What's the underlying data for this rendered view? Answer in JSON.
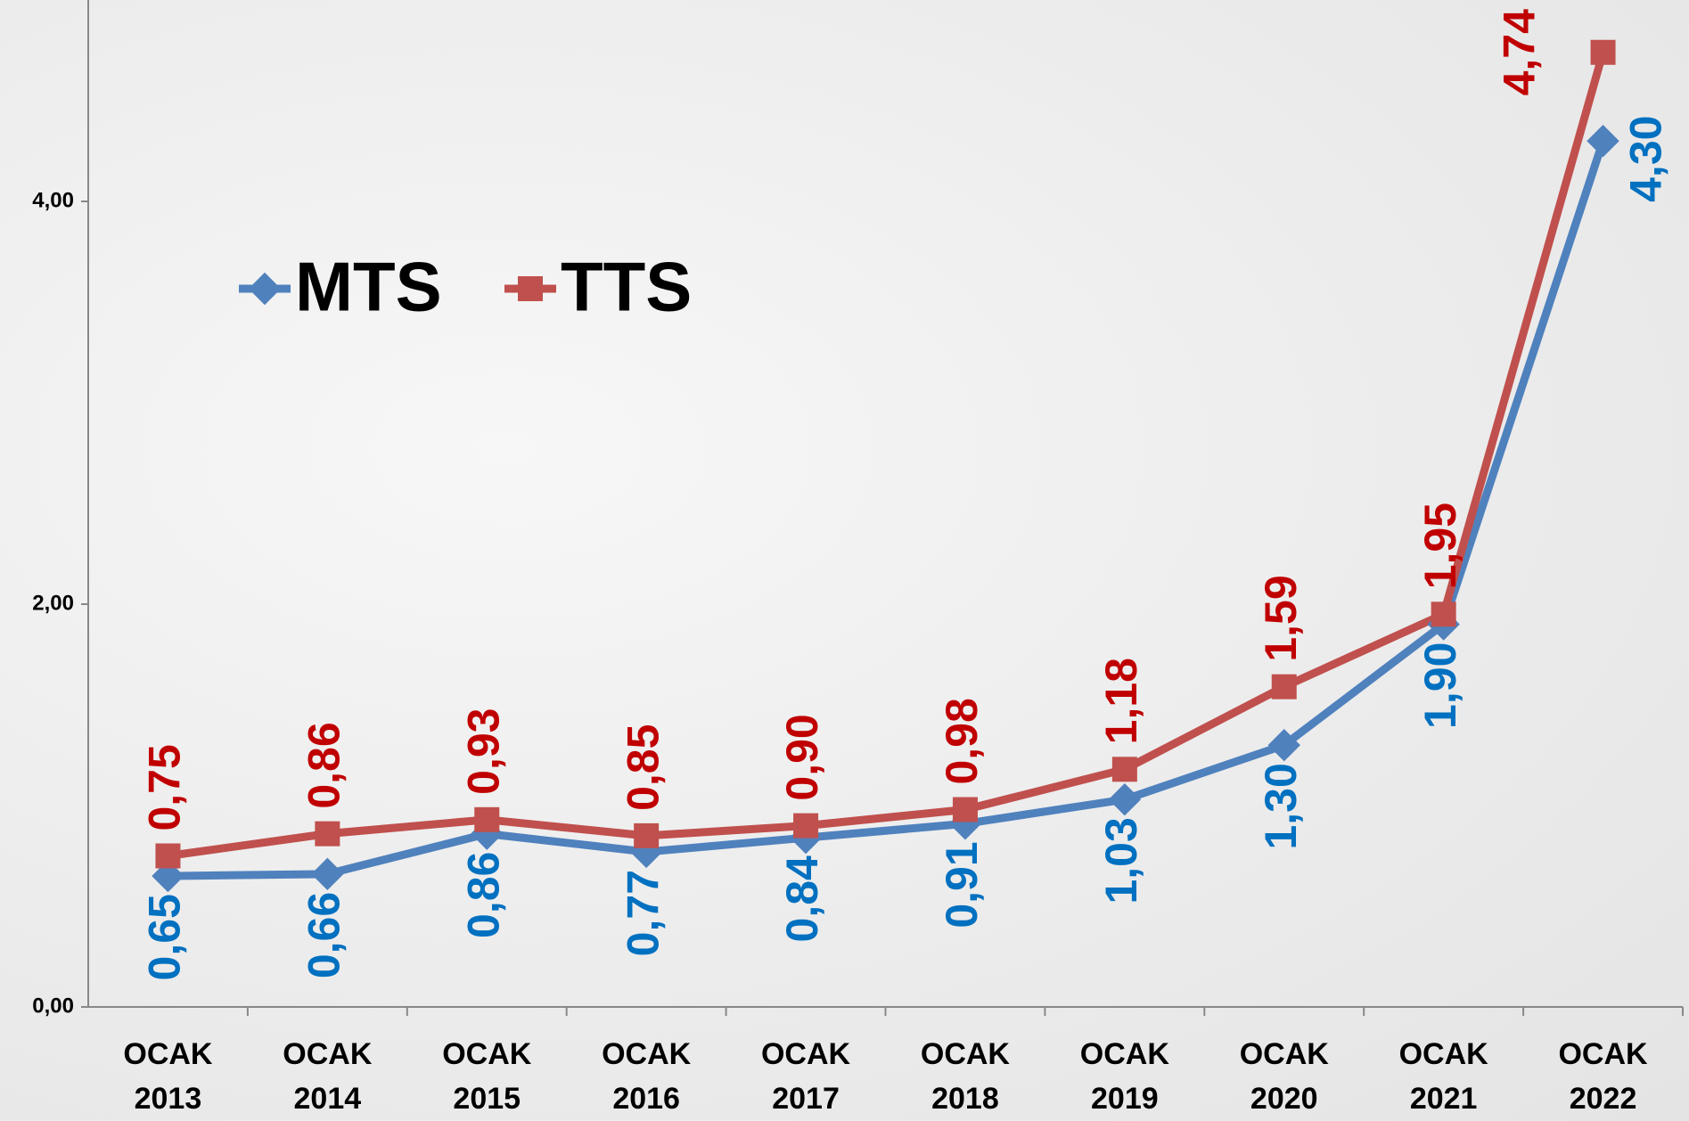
{
  "chart_data": {
    "type": "line",
    "categories": [
      "OCAK 2013",
      "OCAK 2014",
      "OCAK 2015",
      "OCAK 2016",
      "OCAK 2017",
      "OCAK 2018",
      "OCAK 2019",
      "OCAK 2020",
      "OCAK 2021",
      "OCAK 2022"
    ],
    "series": [
      {
        "name": "MTS",
        "color": "#4f81bd",
        "label_color": "#0070c0",
        "marker": "diamond",
        "values": [
          0.65,
          0.66,
          0.86,
          0.77,
          0.84,
          0.91,
          1.03,
          1.3,
          1.9,
          4.3
        ],
        "value_labels": [
          "0,65",
          "0,66",
          "0,86",
          "0,77",
          "0,84",
          "0,91",
          "1,03",
          "1,30",
          "1,90",
          "4,30"
        ]
      },
      {
        "name": "TTS",
        "color": "#c0504d",
        "label_color": "#c00000",
        "marker": "square",
        "values": [
          0.75,
          0.86,
          0.93,
          0.85,
          0.9,
          0.98,
          1.18,
          1.59,
          1.95,
          4.74
        ],
        "value_labels": [
          "0,75",
          "0,86",
          "0,93",
          "0,85",
          "0,90",
          "0,98",
          "1,18",
          "1,59",
          "1,95",
          "4,74"
        ]
      }
    ],
    "ylim": [
      0,
      5
    ],
    "yticks": [
      {
        "value": 0,
        "label": "0,00"
      },
      {
        "value": 2,
        "label": "2,00"
      },
      {
        "value": 4,
        "label": "4,00"
      }
    ]
  }
}
